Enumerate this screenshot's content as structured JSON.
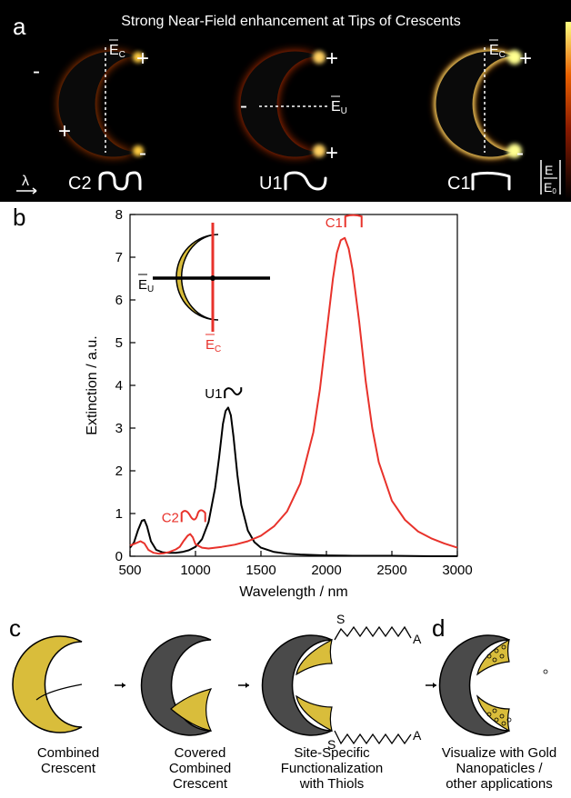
{
  "panel_a": {
    "letter": "a",
    "title": "Strong Near-Field enhancement at Tips of Crescents",
    "mode_labels": [
      "C2",
      "U1",
      "C1"
    ],
    "field_labels": {
      "e_c": "E",
      "e_c_sub": "C",
      "e_u": "E",
      "e_u_sub": "U"
    },
    "colorbar_label": "|E|/|E0|",
    "colorbar_num": "E",
    "colorbar_den": "E",
    "colorbar_den_sub": "0",
    "lambda_symbol": "λ",
    "plus": "+",
    "minus": "-"
  },
  "panel_b": {
    "letter": "b",
    "inset": {
      "e_u": "E",
      "e_u_sub": "U",
      "e_c": "E",
      "e_c_sub": "C"
    },
    "annotations": [
      {
        "text": "C1",
        "color": "#e8322b",
        "x": 2130,
        "y": 7.7
      },
      {
        "text": "U1",
        "color": "#000000",
        "x": 1210,
        "y": 3.7
      },
      {
        "text": "C2",
        "color": "#e8322b",
        "x": 880,
        "y": 0.8
      }
    ]
  },
  "panel_c": {
    "letter_c": "c",
    "letter_d": "d",
    "thiol_s": "S",
    "thiol_a": "A",
    "steps": [
      {
        "line1": "Combined",
        "line2": "Crescent",
        "line3": ""
      },
      {
        "line1": "Covered",
        "line2": "Combined",
        "line3": "Crescent"
      },
      {
        "line1": "Site-Specific",
        "line2": "Functionalization",
        "line3": "with Thiols"
      },
      {
        "line1": "Visualize with Gold",
        "line2": "Nanopaticles /",
        "line3": "other applications"
      }
    ]
  },
  "colors": {
    "red": "#e8322b",
    "gold": "#d9bd3b",
    "gray": "#555555",
    "black": "#000000"
  },
  "chart_data": {
    "type": "line",
    "xlabel": "Wavelength / nm",
    "ylabel": "Extinction / a.u.",
    "xlim": [
      500,
      3000
    ],
    "ylim": [
      0,
      8
    ],
    "xticks": [
      500,
      1000,
      1500,
      2000,
      2500,
      3000
    ],
    "yticks": [
      0,
      1,
      2,
      3,
      4,
      5,
      6,
      7,
      8
    ],
    "grid": false,
    "series": [
      {
        "color": "#000000",
        "x": [
          500,
          530,
          560,
          590,
          610,
          630,
          660,
          700,
          750,
          800,
          850,
          900,
          950,
          1000,
          1050,
          1100,
          1150,
          1180,
          1210,
          1230,
          1250,
          1270,
          1290,
          1320,
          1350,
          1400,
          1450,
          1500,
          1600,
          1700,
          1800,
          2000,
          2200,
          2500,
          2800,
          3000
        ],
        "y": [
          0.2,
          0.32,
          0.6,
          0.83,
          0.85,
          0.7,
          0.35,
          0.15,
          0.09,
          0.08,
          0.08,
          0.1,
          0.14,
          0.22,
          0.4,
          0.8,
          1.6,
          2.3,
          3.1,
          3.4,
          3.48,
          3.3,
          2.8,
          1.9,
          1.2,
          0.6,
          0.33,
          0.2,
          0.1,
          0.06,
          0.04,
          0.02,
          0.01,
          0.01,
          0.0,
          0.0
        ]
      },
      {
        "color": "#e8322b",
        "x": [
          500,
          540,
          580,
          610,
          640,
          680,
          720,
          760,
          800,
          850,
          880,
          910,
          940,
          960,
          980,
          1000,
          1050,
          1100,
          1200,
          1300,
          1400,
          1500,
          1600,
          1700,
          1800,
          1900,
          1950,
          2000,
          2050,
          2080,
          2110,
          2140,
          2170,
          2200,
          2250,
          2300,
          2350,
          2400,
          2500,
          2600,
          2700,
          2800,
          2900,
          3000
        ],
        "y": [
          0.25,
          0.3,
          0.35,
          0.3,
          0.15,
          0.08,
          0.06,
          0.07,
          0.1,
          0.16,
          0.22,
          0.36,
          0.48,
          0.52,
          0.44,
          0.28,
          0.2,
          0.18,
          0.22,
          0.27,
          0.35,
          0.48,
          0.7,
          1.05,
          1.7,
          2.9,
          3.9,
          5.2,
          6.5,
          7.1,
          7.4,
          7.45,
          7.2,
          6.7,
          5.5,
          4.1,
          3.0,
          2.2,
          1.3,
          0.85,
          0.58,
          0.42,
          0.3,
          0.2
        ]
      }
    ]
  }
}
